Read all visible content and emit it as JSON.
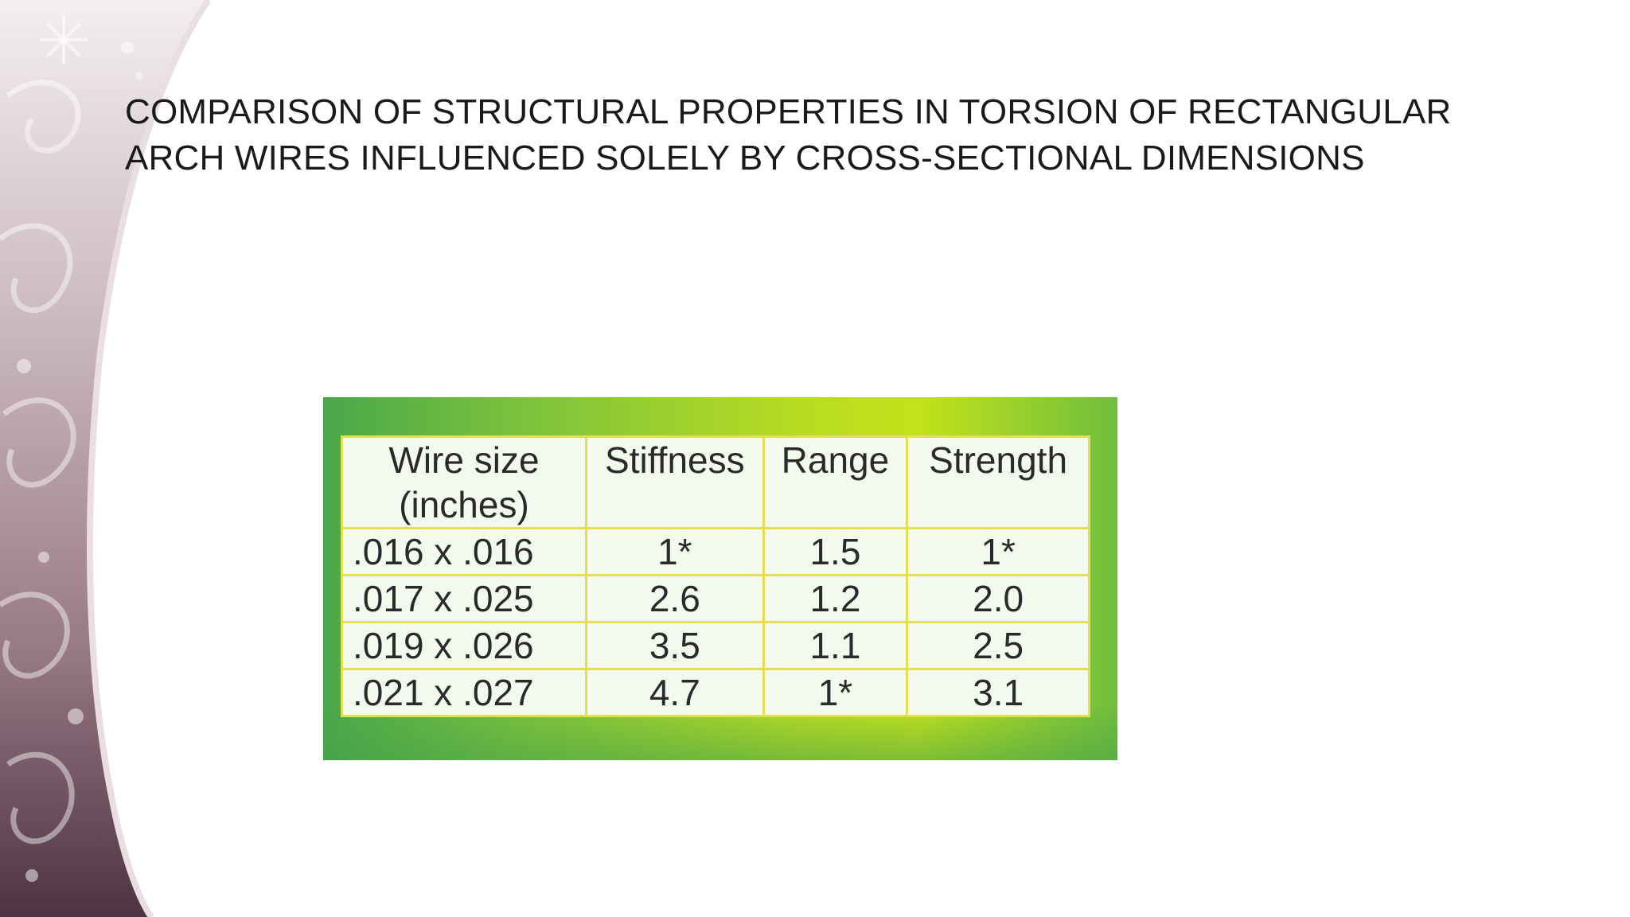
{
  "slide": {
    "title": "COMPARISON OF STRUCTURAL PROPERTIES IN TORSION OF RECTANGULAR ARCH WIRES INFLUENCED SOLELY BY CROSS-SECTIONAL DIMENSIONS"
  },
  "table": {
    "headers": {
      "wire_size_line1": "Wire size",
      "wire_size_line2": "(inches)",
      "stiffness": "Stiffness",
      "range": "Range",
      "strength": "Strength"
    },
    "rows": [
      {
        "wire_size": ".016  x .016",
        "stiffness": "1*",
        "range": "1.5",
        "strength": "1*"
      },
      {
        "wire_size": ".017 x .025",
        "stiffness": "2.6",
        "range": "1.2",
        "strength": "2.0"
      },
      {
        "wire_size": ".019 x .026",
        "stiffness": "3.5",
        "range": "1.1",
        "strength": "2.5"
      },
      {
        "wire_size": ".021 x .027",
        "stiffness": "4.7",
        "range": "1*",
        "strength": "3.1"
      }
    ]
  },
  "colors": {
    "table_border": "#e3df53",
    "frame_green": "#49a84a",
    "frame_yellow": "#c3e21a",
    "decor_mauve": "#6a4a58"
  }
}
